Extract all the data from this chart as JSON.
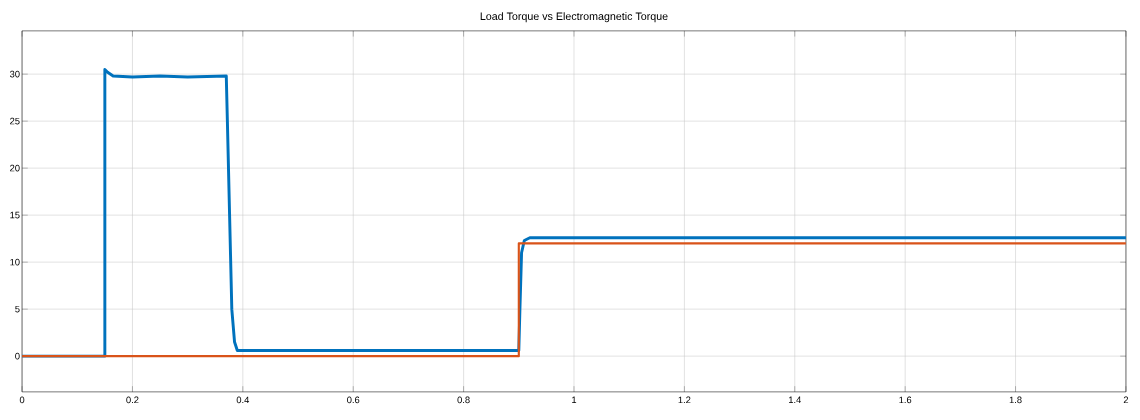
{
  "chart_data": {
    "type": "line",
    "title": "Load Torque vs Electromagnetic Torque",
    "xlim": [
      0,
      2
    ],
    "xticks": [
      0,
      0.2,
      0.4,
      0.6,
      0.8,
      1,
      1.2,
      1.4,
      1.6,
      1.8,
      2
    ],
    "ylim": [
      -3.8,
      34.6
    ],
    "yticks": [
      0,
      5,
      10,
      15,
      20,
      25,
      30
    ],
    "grid": true,
    "marker": "none",
    "line_style": "solid",
    "series": [
      {
        "color": "#0072bd",
        "x": [
          0,
          0.15,
          0.15,
          0.155,
          0.165,
          0.2,
          0.25,
          0.3,
          0.37,
          0.372,
          0.376,
          0.38,
          0.385,
          0.39,
          0.6,
          0.9,
          0.902,
          0.905,
          0.91,
          0.92,
          1.5,
          2
        ],
        "values": [
          0,
          0,
          30.5,
          30.2,
          29.8,
          29.7,
          29.8,
          29.7,
          29.8,
          25,
          15,
          5,
          1.5,
          0.6,
          0.6,
          0.6,
          5,
          11,
          12.3,
          12.6,
          12.6,
          12.6
        ]
      },
      {
        "color": "#d95319",
        "x": [
          0,
          0.9,
          0.9,
          2
        ],
        "values": [
          0,
          0,
          12,
          12
        ]
      }
    ]
  }
}
